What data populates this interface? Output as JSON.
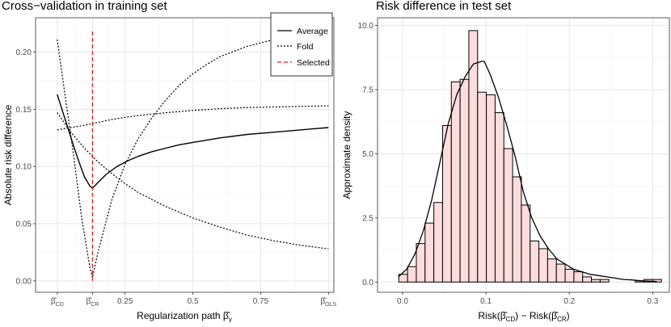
{
  "chart_data": [
    {
      "type": "line",
      "title": "Cross−validation in training set",
      "xlabel": "Regularization path β̂",
      "xlabel_sub": "γ",
      "ylabel": "Absolute risk difference",
      "xlim": [
        -0.08,
        1.02
      ],
      "ylim": [
        -0.01,
        0.23
      ],
      "x_ticks": [
        {
          "value": 0.0,
          "main": "β̂",
          "sub": "CD"
        },
        {
          "value": 0.13,
          "main": "β̂",
          "sub": "CR"
        },
        {
          "value": 0.25,
          "main": "0.25",
          "sub": ""
        },
        {
          "value": 0.5,
          "main": "0.5",
          "sub": ""
        },
        {
          "value": 0.75,
          "main": "0.75",
          "sub": ""
        },
        {
          "value": 1.0,
          "main": "β̂",
          "sub": "OLS"
        }
      ],
      "y_ticks": [
        0.0,
        0.05,
        0.1,
        0.15,
        0.2
      ],
      "y_tick_labels": [
        "0.00",
        "0.05",
        "0.10",
        "0.15",
        "0.20"
      ],
      "selected_x": 0.13,
      "selected_range": [
        0.0,
        0.22
      ],
      "series": [
        {
          "name": "Average",
          "style": "solid",
          "x": [
            0.0,
            0.02,
            0.04,
            0.06,
            0.08,
            0.1,
            0.12,
            0.13,
            0.15,
            0.18,
            0.22,
            0.26,
            0.3,
            0.35,
            0.4,
            0.45,
            0.5,
            0.6,
            0.7,
            0.8,
            0.9,
            1.0
          ],
          "y": [
            0.163,
            0.148,
            0.133,
            0.118,
            0.104,
            0.091,
            0.083,
            0.081,
            0.086,
            0.093,
            0.1,
            0.105,
            0.109,
            0.113,
            0.116,
            0.119,
            0.121,
            0.125,
            0.128,
            0.13,
            0.132,
            0.134
          ]
        },
        {
          "name": "Fold",
          "style": "dotted",
          "x": [
            0.0,
            0.03,
            0.06,
            0.09,
            0.12,
            0.13,
            0.15,
            0.2,
            0.25,
            0.3,
            0.35,
            0.4,
            0.45,
            0.5,
            0.55,
            0.6,
            0.7,
            0.8,
            0.9,
            1.0
          ],
          "y": [
            0.211,
            0.16,
            0.11,
            0.055,
            0.012,
            0.003,
            0.025,
            0.07,
            0.102,
            0.125,
            0.143,
            0.158,
            0.171,
            0.181,
            0.189,
            0.196,
            0.205,
            0.211,
            0.215,
            0.218
          ]
        },
        {
          "name": "Fold",
          "style": "dotted",
          "x": [
            0.0,
            0.05,
            0.1,
            0.15,
            0.2,
            0.25,
            0.3,
            0.4,
            0.5,
            0.6,
            0.7,
            0.8,
            0.9,
            1.0
          ],
          "y": [
            0.132,
            0.134,
            0.136,
            0.1385,
            0.141,
            0.143,
            0.1445,
            0.147,
            0.149,
            0.1505,
            0.1515,
            0.152,
            0.1525,
            0.153
          ]
        },
        {
          "name": "Fold",
          "style": "dotted",
          "x": [
            0.0,
            0.05,
            0.1,
            0.15,
            0.2,
            0.25,
            0.3,
            0.4,
            0.5,
            0.6,
            0.7,
            0.8,
            0.9,
            1.0
          ],
          "y": [
            0.147,
            0.13,
            0.116,
            0.104,
            0.094,
            0.085,
            0.077,
            0.065,
            0.055,
            0.047,
            0.04,
            0.035,
            0.031,
            0.028
          ]
        }
      ],
      "legend": {
        "position": "top-right",
        "entries": [
          {
            "label": "Average",
            "style": "solid",
            "color": "#000000"
          },
          {
            "label": "Fold",
            "style": "dotted",
            "color": "#000000"
          },
          {
            "label": "Selected",
            "style": "dashed",
            "color": "#e41a1c"
          }
        ]
      },
      "colors": {
        "line": "#000000",
        "selected": "#e41a1c"
      }
    },
    {
      "type": "histogram",
      "title": "Risk difference in test set",
      "xlabel_parts": [
        "Risk(",
        "β̂",
        "CD",
        ") − Risk(",
        "β̂",
        "CR",
        ")"
      ],
      "ylabel": "Approximate density",
      "xlim": [
        -0.03,
        0.32
      ],
      "ylim": [
        -0.4,
        10.3
      ],
      "x_ticks": [
        0.0,
        0.1,
        0.2,
        0.3
      ],
      "x_tick_labels": [
        "0.0",
        "0.1",
        "0.2",
        "0.3"
      ],
      "y_ticks": [
        0.0,
        2.5,
        5.0,
        7.5,
        10.0
      ],
      "y_tick_labels": [
        "0.0",
        "2.5",
        "5.0",
        "7.5",
        "10.0"
      ],
      "bin_start": -0.0045,
      "bin_width": 0.0105,
      "bin_heights": [
        0.3,
        0.6,
        1.5,
        2.3,
        3.1,
        6.1,
        7.8,
        7.9,
        9.8,
        7.4,
        7.3,
        6.6,
        5.2,
        4.1,
        3.0,
        1.6,
        1.3,
        0.9,
        0.7,
        0.5,
        0.4,
        0.2,
        0.1,
        0.1,
        0.0,
        0.0,
        0.0,
        0.05,
        0.1,
        0.1
      ],
      "density_x": [
        -0.005,
        0.005,
        0.015,
        0.025,
        0.035,
        0.045,
        0.055,
        0.065,
        0.075,
        0.085,
        0.095,
        0.098,
        0.105,
        0.115,
        0.125,
        0.135,
        0.145,
        0.155,
        0.165,
        0.175,
        0.185,
        0.195,
        0.205,
        0.215,
        0.225,
        0.235,
        0.245,
        0.255,
        0.265,
        0.275,
        0.285,
        0.295,
        0.305
      ],
      "density_y": [
        0.2,
        0.5,
        1.1,
        2.0,
        3.2,
        4.7,
        6.2,
        7.3,
        8.0,
        8.5,
        8.6,
        8.6,
        8.1,
        7.2,
        6.1,
        4.9,
        3.5,
        2.5,
        1.8,
        1.3,
        0.9,
        0.7,
        0.5,
        0.4,
        0.3,
        0.25,
        0.2,
        0.15,
        0.1,
        0.08,
        0.05,
        0.03,
        0.02
      ],
      "colors": {
        "fill": "#fcdcdc",
        "outline": "#000000",
        "density": "#000000"
      }
    }
  ]
}
